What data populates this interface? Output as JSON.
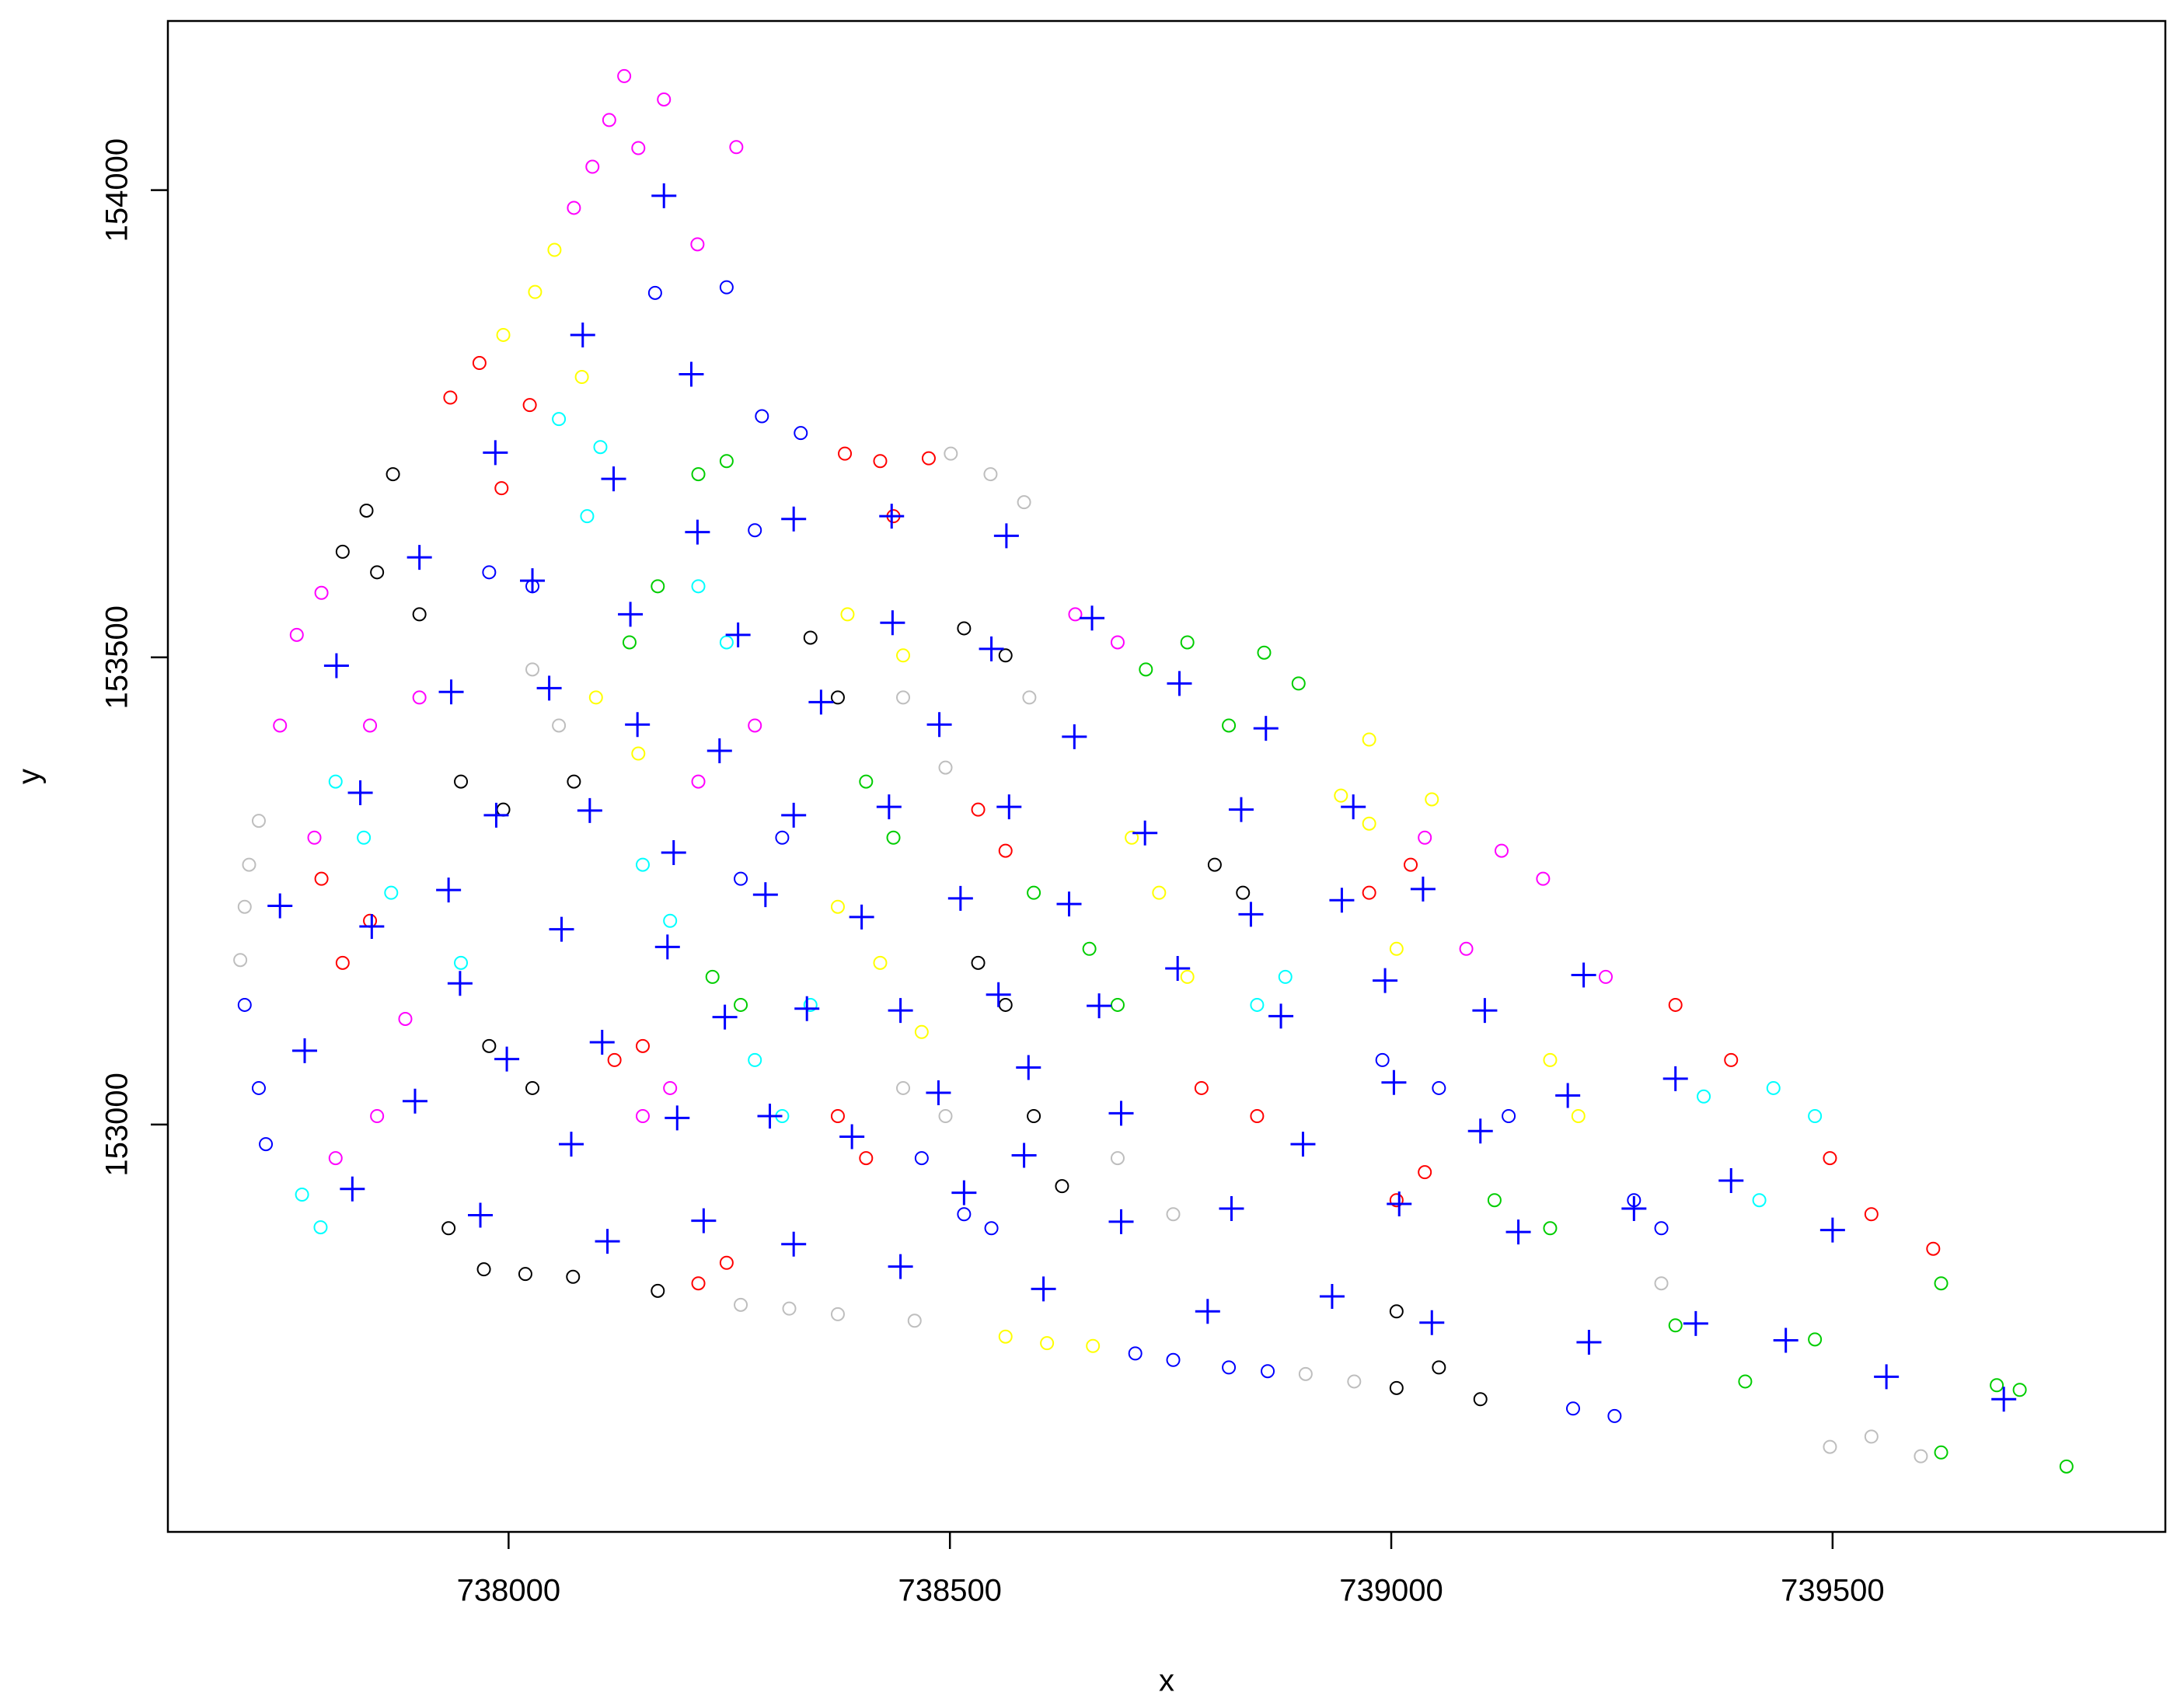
{
  "chart_data": {
    "type": "scatter",
    "xlabel": "x",
    "ylabel": "y",
    "xlim": [
      737614,
      739877
    ],
    "ylim": [
      152564,
      154181
    ],
    "xticks": [
      738000,
      738500,
      739000,
      739500
    ],
    "yticks": [
      153000,
      153500,
      154000
    ],
    "grid": false,
    "series": [
      {
        "color": "#ff00ff",
        "marker": "circle",
        "x": [
          738131,
          738176,
          738114,
          738147,
          738258,
          738095,
          738074,
          738214,
          737760,
          737741,
          737788,
          737843,
          737899,
          737780,
          737883,
          737851,
          737804,
          739125,
          739172,
          739243,
          739085,
          739038,
          738642,
          738690,
          738215,
          738279,
          738152,
          738183
        ],
        "y": [
          154122,
          154097,
          154075,
          154045,
          154046,
          154025,
          153981,
          153942,
          153524,
          153427,
          153569,
          153427,
          153457,
          153307,
          153113,
          153009,
          152964,
          153293,
          153263,
          153158,
          153188,
          153307,
          153546,
          153516,
          153367,
          153427,
          153009,
          153039
        ]
      },
      {
        "color": "#ff0000",
        "marker": "circle",
        "x": [
          737967,
          737934,
          738024,
          737992,
          738381,
          738421,
          738476,
          738436,
          737788,
          737812,
          737843,
          738120,
          738152,
          738532,
          738563,
          738373,
          738405,
          738785,
          738848,
          739006,
          739038,
          739322,
          739385,
          739497,
          739544,
          739614,
          738975,
          739022,
          738215,
          738247
        ],
        "y": [
          153815,
          153778,
          153770,
          153681,
          153718,
          153710,
          153713,
          153651,
          153263,
          153173,
          153218,
          153069,
          153084,
          153337,
          153293,
          153009,
          152964,
          153039,
          153009,
          152919,
          152949,
          153128,
          153069,
          152964,
          152904,
          152867,
          153248,
          153278,
          152830,
          152852
        ]
      },
      {
        "color": "#000000",
        "marker": "circle",
        "x": [
          737869,
          737839,
          737812,
          737851,
          737899,
          737946,
          737994,
          738074,
          737978,
          738027,
          737932,
          737972,
          738019,
          738073,
          738169,
          738342,
          738373,
          738516,
          738563,
          738532,
          738563,
          738595,
          738627,
          738832,
          738800,
          739006,
          739054,
          739006,
          739101
        ],
        "y": [
          153696,
          153657,
          153613,
          153591,
          153546,
          153367,
          153337,
          153367,
          153084,
          153039,
          152889,
          152845,
          152840,
          152837,
          152822,
          153521,
          153457,
          153531,
          153502,
          153173,
          153128,
          153009,
          152934,
          153248,
          153278,
          152800,
          152740,
          152718,
          152706
        ]
      },
      {
        "color": "#0000ff",
        "marker": "circle",
        "x": [
          738166,
          738247,
          738287,
          738331,
          737978,
          738027,
          738279,
          738310,
          738263,
          737701,
          737717,
          737725,
          738468,
          738516,
          738547,
          738710,
          738753,
          738816,
          738990,
          739054,
          739133,
          739275,
          739306,
          739206,
          739253,
          738860
        ],
        "y": [
          153890,
          153896,
          153758,
          153740,
          153591,
          153576,
          153636,
          153307,
          153263,
          153128,
          153039,
          152979,
          152964,
          152904,
          152889,
          152755,
          152748,
          152740,
          153069,
          153039,
          153009,
          152919,
          152889,
          152696,
          152688,
          152736
        ]
      },
      {
        "color": "#00ffff",
        "marker": "circle",
        "x": [
          738057,
          738104,
          738089,
          738215,
          738247,
          737804,
          737836,
          737867,
          737946,
          738152,
          738183,
          738279,
          738310,
          738342,
          738848,
          738880,
          739354,
          739417,
          739480,
          739433,
          737766,
          737787
        ],
        "y": [
          153755,
          153725,
          153651,
          153576,
          153516,
          153367,
          153307,
          153248,
          153173,
          153278,
          153218,
          153069,
          153009,
          153128,
          153128,
          153158,
          153030,
          152919,
          153009,
          153039,
          152925,
          152890
        ]
      },
      {
        "color": "#00cd00",
        "marker": "circle",
        "x": [
          738215,
          738247,
          738169,
          738137,
          738405,
          738436,
          738231,
          738263,
          738595,
          738658,
          738690,
          738722,
          738769,
          738816,
          738856,
          738895,
          739117,
          739180,
          739322,
          739401,
          739480,
          739623,
          739686,
          739712,
          739765,
          739623
        ],
        "y": [
          153696,
          153710,
          153576,
          153516,
          153367,
          153307,
          153158,
          153128,
          153248,
          153188,
          153128,
          153487,
          153516,
          153427,
          153505,
          153472,
          152919,
          152889,
          152785,
          152725,
          152770,
          152830,
          152721,
          152716,
          152634,
          152649
        ]
      },
      {
        "color": "#ffff00",
        "marker": "circle",
        "x": [
          738030,
          738052,
          737994,
          738083,
          738099,
          738147,
          738384,
          738447,
          738373,
          738421,
          738468,
          738706,
          738737,
          738769,
          738943,
          738975,
          739006,
          739180,
          739212,
          738563,
          738610,
          738662,
          739046,
          738975
        ],
        "y": [
          153891,
          153936,
          153845,
          153800,
          153457,
          153397,
          153546,
          153502,
          153233,
          153173,
          153099,
          153307,
          153248,
          153158,
          153352,
          153322,
          153188,
          153069,
          153009,
          152773,
          152766,
          152763,
          153348,
          153412
        ]
      },
      {
        "color": "#bebebe",
        "marker": "circle",
        "x": [
          737701,
          737696,
          737717,
          737706,
          738501,
          738546,
          738584,
          738447,
          738495,
          738590,
          738027,
          738057,
          738447,
          738495,
          738263,
          738318,
          738373,
          738460,
          738690,
          738753,
          738903,
          738958,
          739497,
          739544,
          739600,
          739306
        ],
        "y": [
          153233,
          153176,
          153325,
          153278,
          153718,
          153696,
          153666,
          153457,
          153382,
          153457,
          153487,
          153427,
          153039,
          153009,
          152807,
          152803,
          152797,
          152790,
          152964,
          152904,
          152733,
          152725,
          152655,
          152666,
          152645,
          152830
        ]
      },
      {
        "color": "#0000ff",
        "marker": "plus",
        "x": [
          738176,
          738084,
          738207,
          737985,
          738119,
          738214,
          737899,
          738027,
          738138,
          738260,
          738323,
          738434,
          738564,
          738435,
          738547,
          738661,
          737805,
          737935,
          738046,
          738146,
          738239,
          738354,
          738488,
          738641,
          738760,
          738858,
          737832,
          737986,
          738092,
          738187,
          738323,
          738431,
          738567,
          738721,
          738830,
          738957,
          737741,
          737845,
          737932,
          738060,
          738180,
          738291,
          738400,
          738512,
          738635,
          738841,
          738944,
          739036,
          737945,
          738245,
          738338,
          738444,
          738555,
          738669,
          738758,
          738875,
          738993,
          739106,
          739218,
          737769,
          737998,
          738106,
          738589,
          739003,
          739200,
          739322,
          737894,
          738071,
          738191,
          738296,
          738487,
          738694,
          738389,
          738584,
          738900,
          739101,
          739385,
          737823,
          737968,
          738112,
          738221,
          738516,
          738694,
          738819,
          739009,
          739144,
          739275,
          739500,
          738323,
          738444,
          738606,
          738792,
          738933,
          739046,
          739345,
          739224,
          739447,
          739561,
          739694
        ],
        "y": [
          153994,
          153845,
          153803,
          153719,
          153691,
          153634,
          153607,
          153582,
          153546,
          153524,
          153648,
          153651,
          153630,
          153537,
          153509,
          153542,
          153491,
          153463,
          153467,
          153428,
          153400,
          153452,
          153428,
          153415,
          153472,
          153424,
          153355,
          153331,
          153336,
          153291,
          153331,
          153340,
          153340,
          153312,
          153337,
          153340,
          153234,
          153212,
          153251,
          153209,
          153190,
          153246,
          153222,
          153242,
          153236,
          153225,
          153240,
          153252,
          153151,
          153115,
          153124,
          153122,
          153139,
          153127,
          153167,
          153116,
          153154,
          153122,
          153160,
          153079,
          153070,
          153088,
          153061,
          153045,
          153031,
          153049,
          153025,
          152979,
          153007,
          153009,
          153034,
          153012,
          152987,
          152967,
          152979,
          152993,
          152940,
          152931,
          152903,
          152875,
          152897,
          152927,
          152896,
          152910,
          152915,
          152885,
          152910,
          152887,
          152872,
          152848,
          152824,
          152800,
          152816,
          152788,
          152787,
          152767,
          152769,
          152730,
          152706
        ]
      }
    ]
  }
}
